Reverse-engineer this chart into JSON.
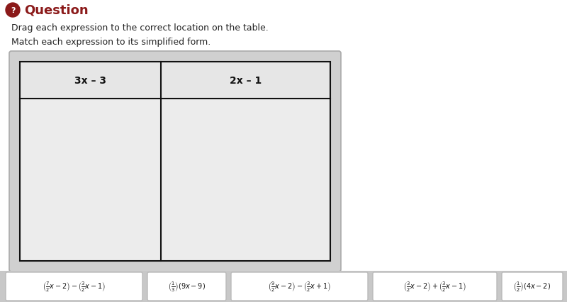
{
  "bg_color": "#ffffff",
  "question_color": "#8B1A1A",
  "question_icon_color": "#8B1A1A",
  "question_text": "Question",
  "instruction1": "Drag each expression to the correct location on the table.",
  "instruction2": "Match each expression to its simplified form.",
  "table": {
    "col1_label": "3x – 3",
    "col2_label": "2x – 1",
    "outer_pad_color": "#cccccc",
    "header_bg": "#e8e8e8",
    "body_bg": "#ebebeb",
    "border_color": "#111111"
  },
  "drag_area_bg": "#c8c8c8",
  "pill_bg": "#ffffff",
  "pill_border": "#bbbbbb",
  "expr_texts": [
    "($\\frac{7}{2}x-2) - (\\frac{3}{2}x-1)$",
    "($\\frac{1}{3})(9x-9)$",
    "($\\frac{9}{2}x-2) - (\\frac{3}{2}x+1)$",
    "($\\frac{3}{2}x-2) + (\\frac{3}{2}x-1)$",
    "($\\frac{1}{2})(4x-2)$"
  ]
}
